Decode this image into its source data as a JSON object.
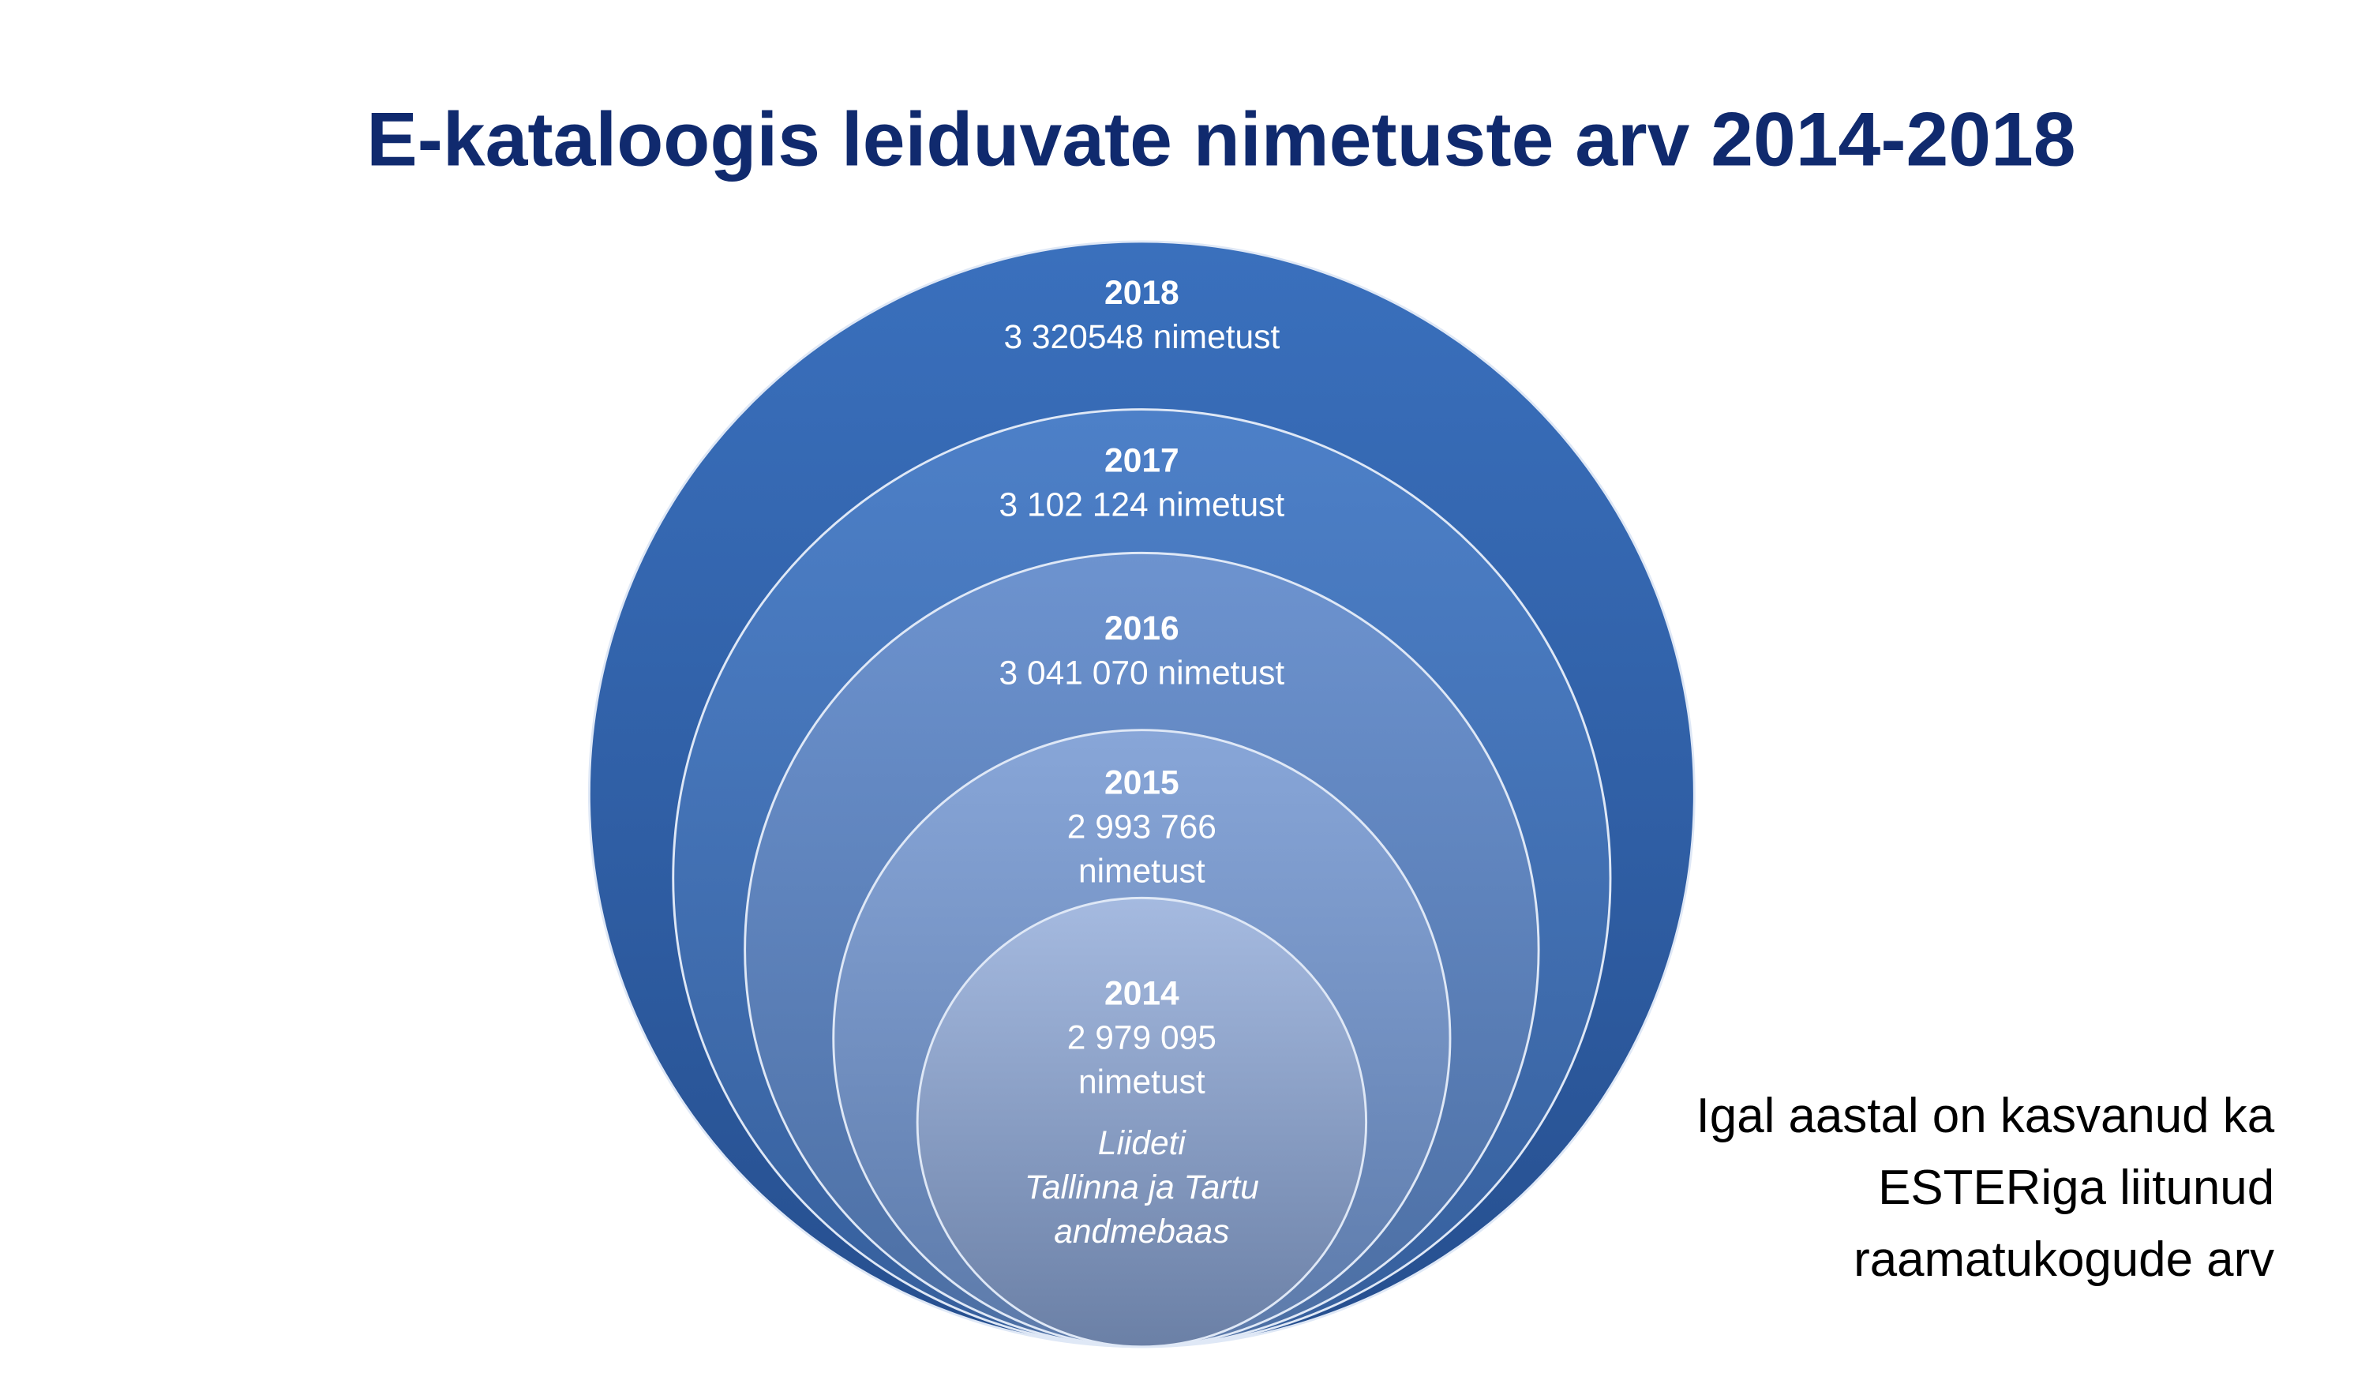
{
  "title": "E-kataloogis leiduvate nimetuste arv 2014-2018",
  "circles": [
    {
      "year": "2018",
      "lines": [
        "3 320548 nimetust"
      ]
    },
    {
      "year": "2017",
      "lines": [
        "3 102 124 nimetust"
      ]
    },
    {
      "year": "2016",
      "lines": [
        "3 041 070 nimetust"
      ]
    },
    {
      "year": "2015",
      "lines": [
        "2 993 766",
        "nimetust"
      ]
    },
    {
      "year": "2014",
      "lines": [
        "2 979 095",
        "nimetust"
      ],
      "note": [
        "Liideti",
        "Tallinna ja Tartu",
        "andmebaas"
      ]
    }
  ],
  "side_note": [
    "Igal aastal on kasvanud ka",
    "ESTERiga liitunud",
    "raamatukogude arv"
  ]
}
